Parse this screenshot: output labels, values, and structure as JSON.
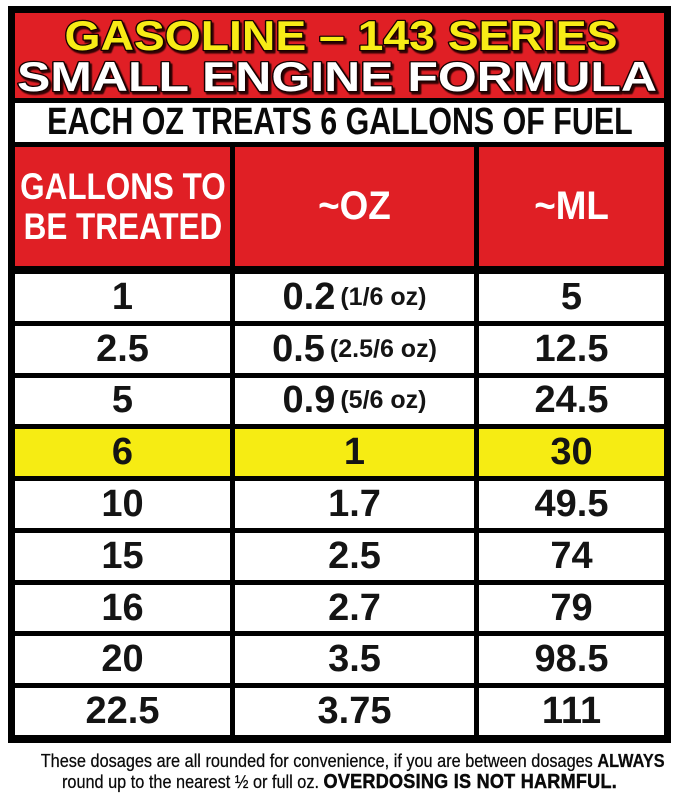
{
  "title": {
    "line1": "GASOLINE – 143 SERIES",
    "line2": "SMALL ENGINE FORMULA"
  },
  "subtitle": "EACH OZ TREATS 6 GALLONS OF FUEL",
  "colors": {
    "red": "#E01F25",
    "title_yellow": "#F8EC15",
    "row_yellow": "#F6EC13"
  },
  "chart_data": {
    "type": "table",
    "title": "GASOLINE – 143 SERIES SMALL ENGINE FORMULA",
    "subtitle": "EACH OZ TREATS 6 GALLONS OF FUEL",
    "columns": [
      {
        "id": "gallons",
        "label": "GALLONS TO BE TREATED",
        "label_lines": [
          "GALLONS TO",
          "BE TREATED"
        ]
      },
      {
        "id": "oz",
        "label": "~OZ"
      },
      {
        "id": "ml",
        "label": "~ML"
      }
    ],
    "rows": [
      {
        "gallons": "1",
        "oz": "0.2",
        "oz_note": "(1/6 oz)",
        "ml": "5",
        "highlight": false
      },
      {
        "gallons": "2.5",
        "oz": "0.5",
        "oz_note": "(2.5/6 oz)",
        "ml": "12.5",
        "highlight": false
      },
      {
        "gallons": "5",
        "oz": "0.9",
        "oz_note": "(5/6 oz)",
        "ml": "24.5",
        "highlight": false
      },
      {
        "gallons": "6",
        "oz": "1",
        "oz_note": "",
        "ml": "30",
        "highlight": true
      },
      {
        "gallons": "10",
        "oz": "1.7",
        "oz_note": "",
        "ml": "49.5",
        "highlight": false
      },
      {
        "gallons": "15",
        "oz": "2.5",
        "oz_note": "",
        "ml": "74",
        "highlight": false
      },
      {
        "gallons": "16",
        "oz": "2.7",
        "oz_note": "",
        "ml": "79",
        "highlight": false
      },
      {
        "gallons": "20",
        "oz": "3.5",
        "oz_note": "",
        "ml": "98.5",
        "highlight": false
      },
      {
        "gallons": "22.5",
        "oz": "3.75",
        "oz_note": "",
        "ml": "111",
        "highlight": false
      }
    ],
    "highlighted_row_index": 3
  },
  "footer": {
    "part1": "These dosages are all rounded for convenience, if you are between dosages ",
    "bold1": "ALWAYS",
    "part2": "round up to the nearest ½ or full oz. ",
    "bold2": "OVERDOSING IS NOT HARMFUL."
  }
}
